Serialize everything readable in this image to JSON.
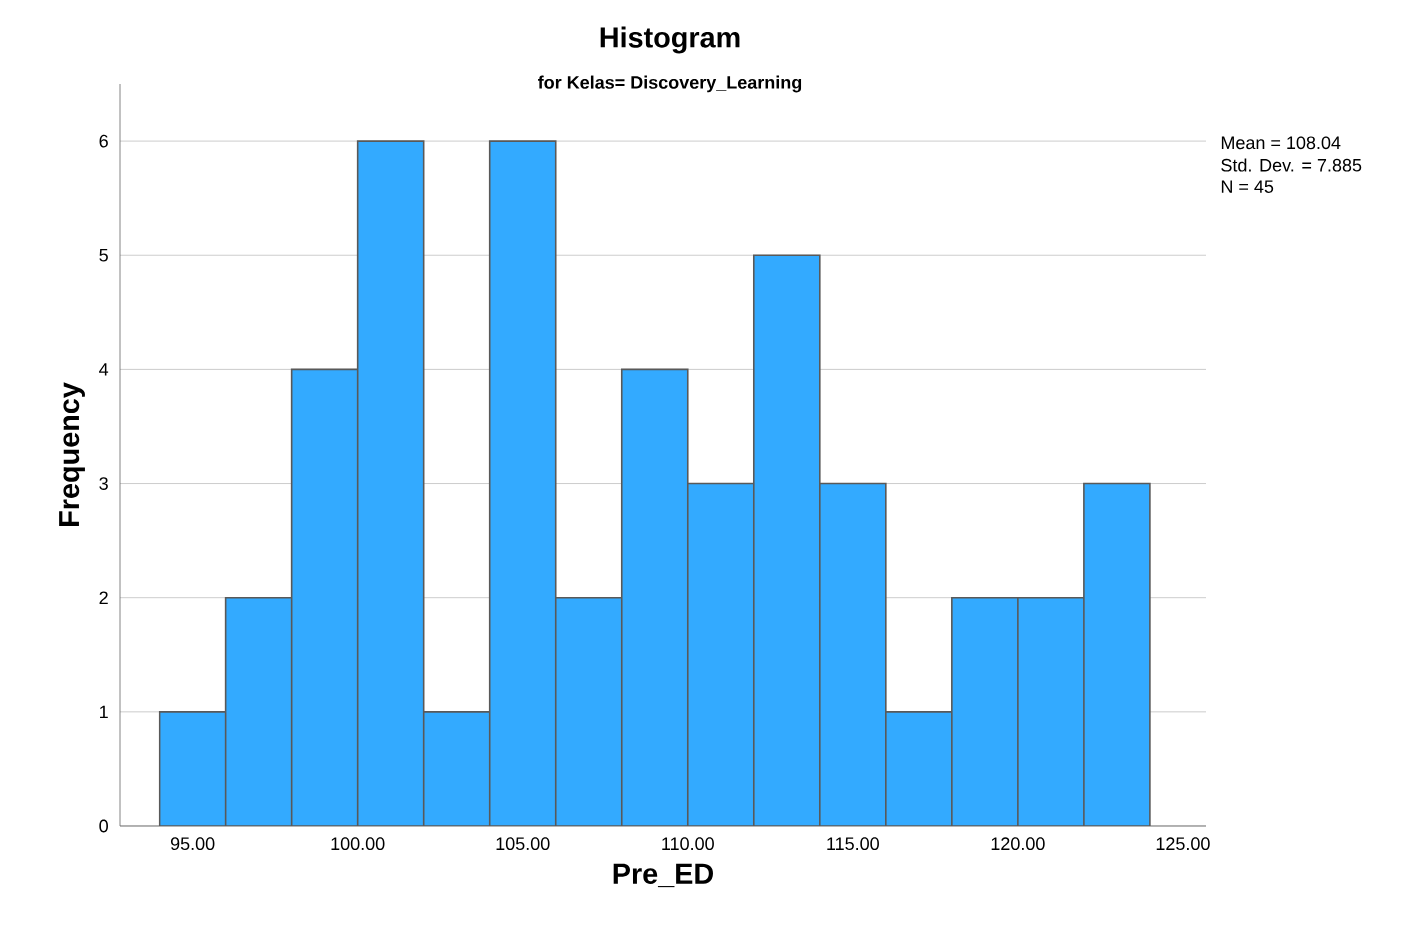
{
  "chart_data": {
    "type": "histogram",
    "title": "Histogram",
    "subtitle": "for Kelas= Discovery_Learning",
    "xlabel": "Pre_ED",
    "ylabel": "Frequency",
    "bins": [
      94,
      96,
      98,
      100,
      102,
      104,
      106,
      108,
      110,
      112,
      114,
      116,
      118,
      120,
      122,
      124
    ],
    "values": [
      1,
      2,
      4,
      6,
      1,
      6,
      2,
      4,
      3,
      5,
      3,
      1,
      2,
      2,
      3
    ],
    "color": "#33aaff",
    "xlim": [
      92.8,
      125.7
    ],
    "xticks": [
      {
        "value": 95,
        "label": "95.00"
      },
      {
        "value": 100,
        "label": "100.00"
      },
      {
        "value": 105,
        "label": "105.00"
      },
      {
        "value": 110,
        "label": "110.00"
      },
      {
        "value": 115,
        "label": "115.00"
      },
      {
        "value": 120,
        "label": "120.00"
      },
      {
        "value": 125,
        "label": "125.00"
      }
    ],
    "ylim": [
      0,
      6.5
    ],
    "yticks": [
      0,
      1,
      2,
      3,
      4,
      5,
      6
    ],
    "grid": "y",
    "annotations": [
      "Mean = 108.04",
      "Std. Dev. = 7.885",
      "N = 45"
    ]
  }
}
